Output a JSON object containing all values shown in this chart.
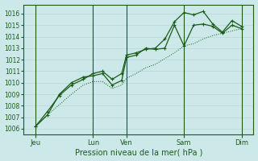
{
  "background_color": "#cce8e8",
  "grid_color_major": "#aacccc",
  "grid_color_minor": "#cce0e0",
  "line_color": "#1a5c1a",
  "xlim": [
    0,
    96
  ],
  "ylim": [
    1005.5,
    1016.8
  ],
  "yticks": [
    1006,
    1007,
    1008,
    1009,
    1010,
    1011,
    1012,
    1013,
    1014,
    1015,
    1016
  ],
  "xtick_positions": [
    5,
    29,
    43,
    67,
    91
  ],
  "xtick_labels": [
    "Jeu",
    "Lun",
    "Ven",
    "Sam",
    "Dim"
  ],
  "xlabel": "Pression niveau de la mer( hPa )",
  "vlines": [
    5,
    29,
    43,
    67,
    91
  ],
  "line_dotted": {
    "x": [
      5,
      10,
      15,
      20,
      25,
      29,
      33,
      37,
      41,
      43,
      47,
      51,
      55,
      59,
      63,
      67,
      71,
      75,
      79,
      83,
      87,
      91
    ],
    "y": [
      1006.2,
      1007.2,
      1008.1,
      1009.0,
      1009.8,
      1010.1,
      1010.1,
      1009.5,
      1009.8,
      1010.4,
      1010.8,
      1011.3,
      1011.6,
      1012.1,
      1012.6,
      1013.2,
      1013.4,
      1013.8,
      1014.1,
      1014.3,
      1014.5,
      1014.7
    ]
  },
  "line_solid1": {
    "x": [
      5,
      10,
      15,
      20,
      25,
      29,
      33,
      37,
      41,
      43,
      47,
      51,
      55,
      59,
      63,
      67,
      71,
      75,
      79,
      83,
      87,
      91
    ],
    "y": [
      1006.2,
      1007.5,
      1008.9,
      1009.8,
      1010.3,
      1010.8,
      1011.0,
      1010.3,
      1010.8,
      1012.4,
      1012.6,
      1012.9,
      1013.0,
      1013.8,
      1015.3,
      1016.1,
      1015.9,
      1016.2,
      1015.1,
      1014.4,
      1015.4,
      1014.9
    ]
  },
  "line_solid2": {
    "x": [
      5,
      10,
      15,
      20,
      25,
      29,
      33,
      37,
      41,
      43,
      47,
      51,
      55,
      59,
      63,
      67,
      71,
      75,
      79,
      83,
      87,
      91
    ],
    "y": [
      1006.2,
      1007.2,
      1009.0,
      1010.0,
      1010.5,
      1010.6,
      1010.8,
      1009.8,
      1010.2,
      1012.2,
      1012.4,
      1013.0,
      1012.9,
      1013.0,
      1015.0,
      1013.2,
      1015.0,
      1015.1,
      1014.9,
      1014.3,
      1015.0,
      1014.7
    ]
  }
}
